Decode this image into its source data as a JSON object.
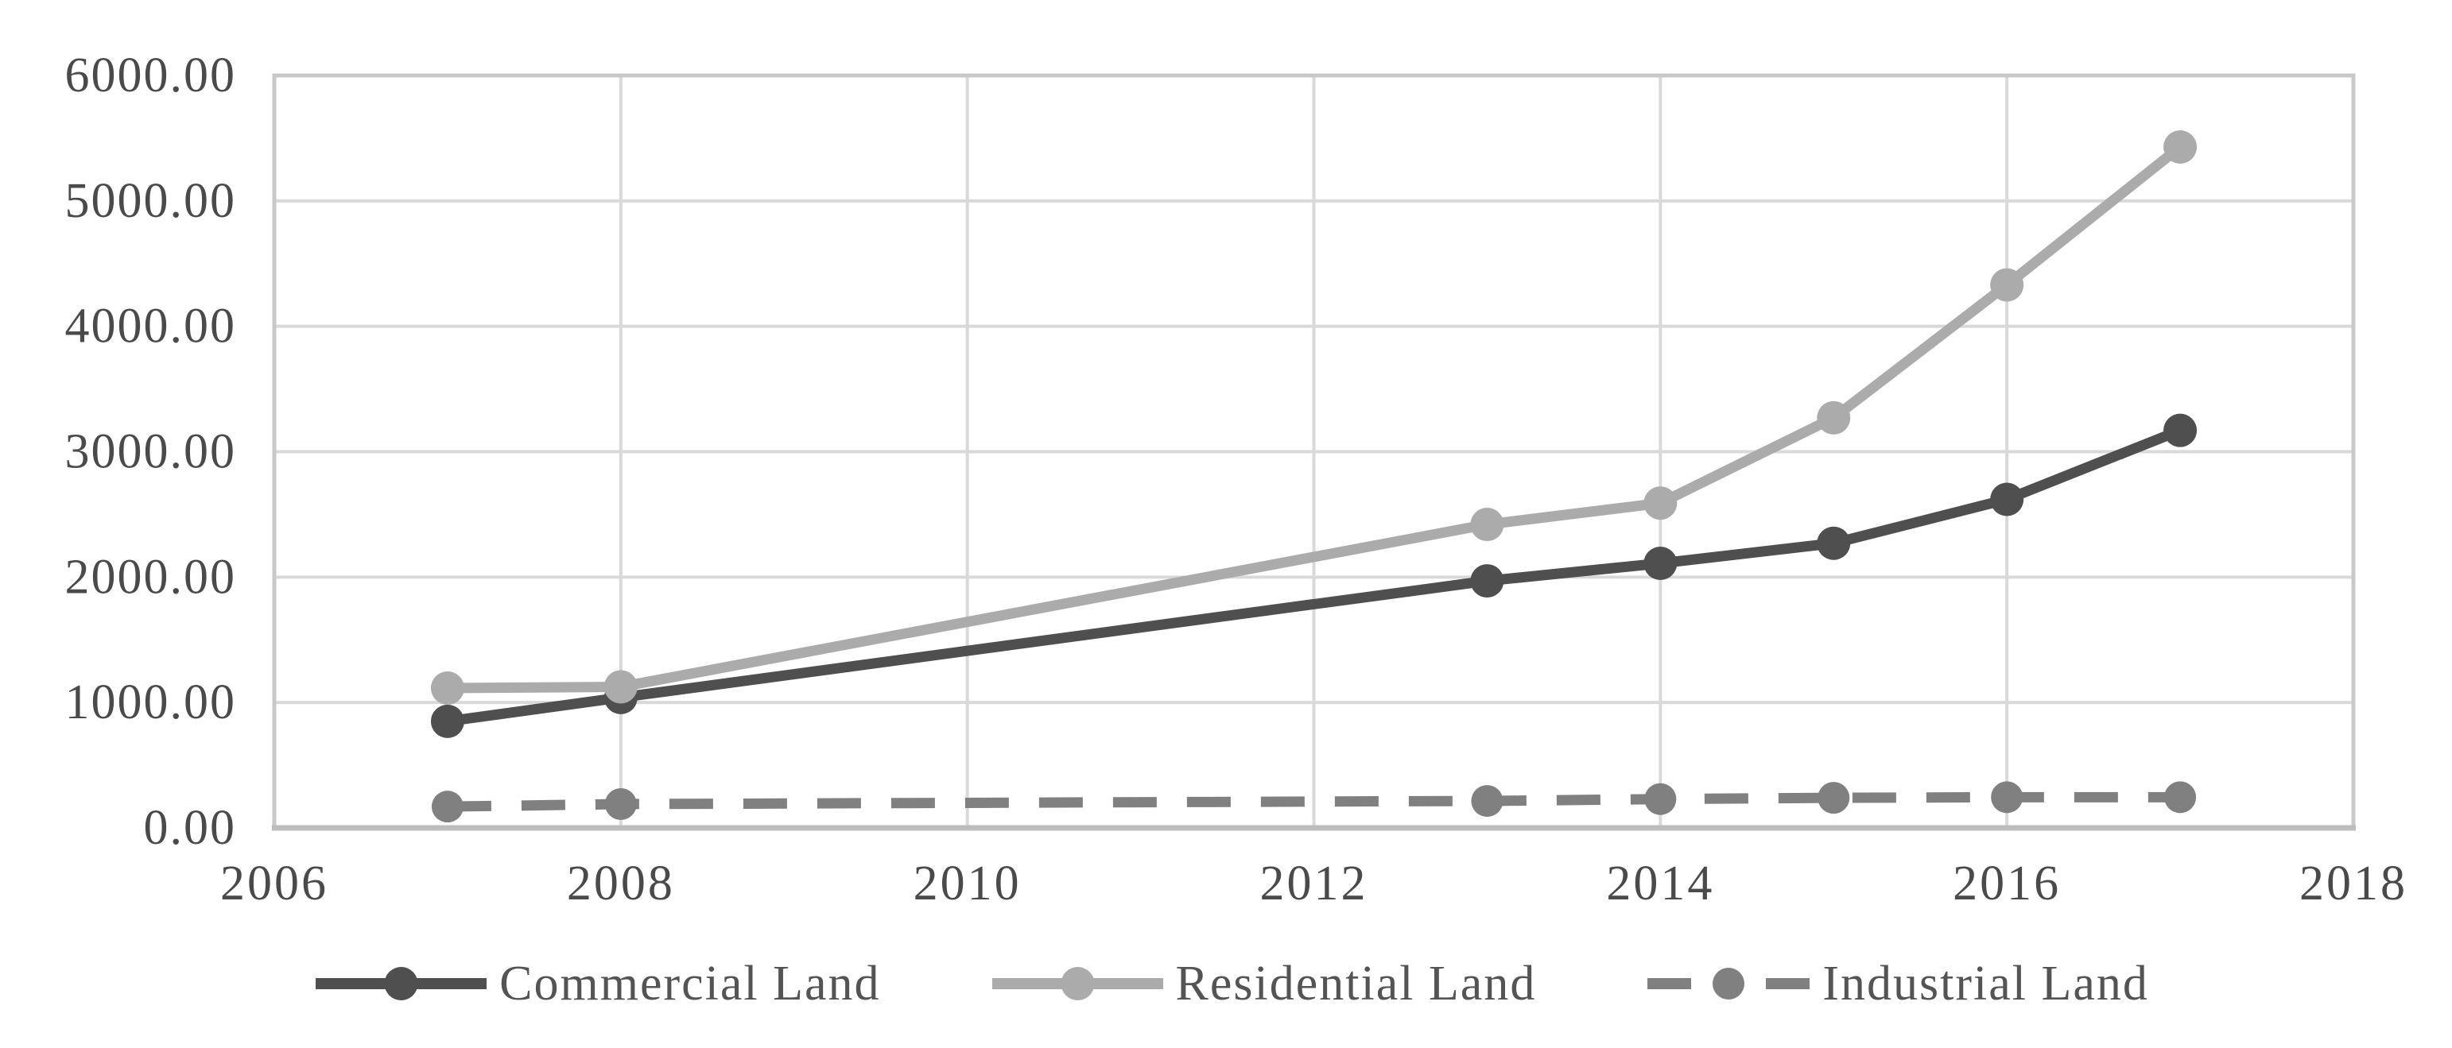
{
  "chart_data": {
    "type": "line",
    "title": "",
    "xlabel": "",
    "ylabel": "",
    "x": [
      2007,
      2008,
      2013,
      2014,
      2015,
      2016,
      2017
    ],
    "series": [
      {
        "name": "Commercial Land",
        "values": [
          850,
          1040,
          1970,
          2110,
          2270,
          2620,
          3170
        ],
        "color": "#4f4f4f",
        "line_style": "solid",
        "marker": "circle"
      },
      {
        "name": "Residential Land",
        "values": [
          1115,
          1125,
          2420,
          2590,
          3270,
          4330,
          5430
        ],
        "color": "#ababab",
        "line_style": "solid",
        "marker": "circle"
      },
      {
        "name": "Industrial Land",
        "values": [
          170,
          190,
          215,
          230,
          240,
          245,
          245
        ],
        "color": "#808080",
        "line_style": "dashed",
        "marker": "circle"
      }
    ],
    "xlim": [
      2006,
      2018
    ],
    "ylim": [
      0,
      6000
    ],
    "x_tick_values": [
      2006,
      2008,
      2010,
      2012,
      2014,
      2016,
      2018
    ],
    "x_tick_labels": [
      "2006",
      "2008",
      "2010",
      "2012",
      "2014",
      "2016",
      "2018"
    ],
    "y_tick_values": [
      0,
      1000,
      2000,
      3000,
      4000,
      5000,
      6000
    ],
    "y_tick_labels": [
      "0.00",
      "1000.00",
      "2000.00",
      "3000.00",
      "4000.00",
      "5000.00",
      "6000.00"
    ],
    "grid": true,
    "legend_position": "bottom"
  },
  "styles": {
    "background": "#ffffff",
    "gridline_color": "#d9d9d9",
    "border_color": "#c8c8c8",
    "axis_line_color": "#bdbdbd",
    "tick_label_color": "#4a4a4a",
    "legend_text_color": "#545454"
  }
}
